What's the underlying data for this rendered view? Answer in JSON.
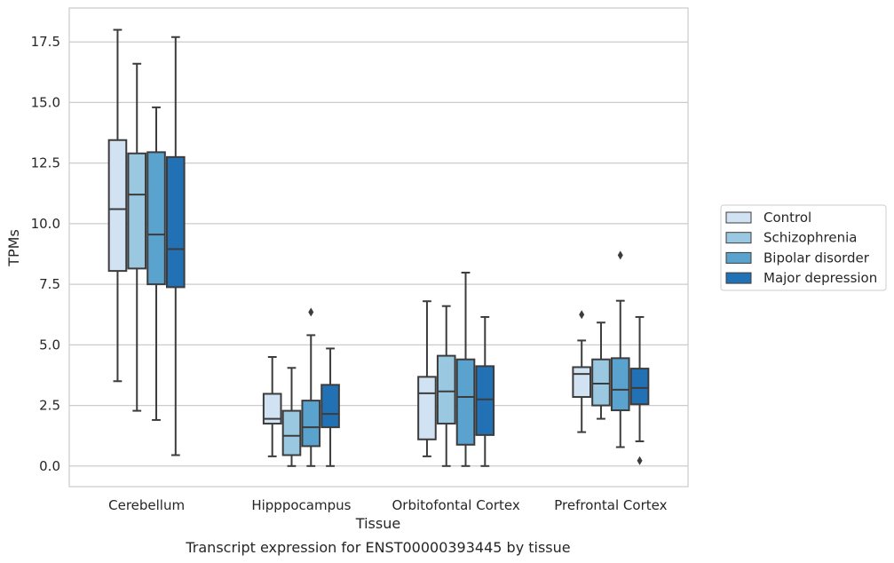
{
  "chart_data": {
    "type": "boxplot",
    "caption": "Transcript expression for ENST00000393445 by tissue",
    "xlabel": "Tissue",
    "ylabel": "TPMs",
    "ylim": [
      -0.85,
      18.9
    ],
    "yticks": [
      "0.0",
      "2.5",
      "5.0",
      "7.5",
      "10.0",
      "12.5",
      "15.0",
      "17.5"
    ],
    "grid": "horizontal",
    "legend_position": "right",
    "categories": [
      "Cerebellum",
      "Hipppocampus",
      "Orbitofontal Cortex",
      "Prefrontal Cortex"
    ],
    "series": [
      {
        "name": "Control",
        "color": "#d1e2f2",
        "boxes": [
          {
            "whislo": 3.5,
            "q1": 8.05,
            "med": 10.6,
            "q3": 13.45,
            "whishi": 18.0,
            "fliers": []
          },
          {
            "whislo": 0.4,
            "q1": 1.75,
            "med": 1.95,
            "q3": 2.98,
            "whishi": 4.5,
            "fliers": []
          },
          {
            "whislo": 0.4,
            "q1": 1.1,
            "med": 3.0,
            "q3": 3.68,
            "whishi": 6.8,
            "fliers": []
          },
          {
            "whislo": 1.4,
            "q1": 2.85,
            "med": 3.8,
            "q3": 4.08,
            "whishi": 5.18,
            "fliers": [
              6.25
            ]
          }
        ]
      },
      {
        "name": "Schizophrenia",
        "color": "#9ac8e0",
        "boxes": [
          {
            "whislo": 2.28,
            "q1": 8.15,
            "med": 11.2,
            "q3": 12.9,
            "whishi": 16.6,
            "fliers": []
          },
          {
            "whislo": 0.0,
            "q1": 0.45,
            "med": 1.25,
            "q3": 2.28,
            "whishi": 4.05,
            "fliers": []
          },
          {
            "whislo": 0.0,
            "q1": 1.75,
            "med": 3.08,
            "q3": 4.55,
            "whishi": 6.6,
            "fliers": []
          },
          {
            "whislo": 1.95,
            "q1": 2.5,
            "med": 3.4,
            "q3": 4.4,
            "whishi": 5.92,
            "fliers": []
          }
        ]
      },
      {
        "name": "Bipolar disorder",
        "color": "#5ba3cf",
        "boxes": [
          {
            "whislo": 1.9,
            "q1": 7.5,
            "med": 9.55,
            "q3": 12.95,
            "whishi": 14.8,
            "fliers": []
          },
          {
            "whislo": 0.0,
            "q1": 0.82,
            "med": 1.6,
            "q3": 2.7,
            "whishi": 5.4,
            "fliers": [
              6.35
            ]
          },
          {
            "whislo": 0.0,
            "q1": 0.88,
            "med": 2.85,
            "q3": 4.4,
            "whishi": 7.98,
            "fliers": []
          },
          {
            "whislo": 0.78,
            "q1": 2.3,
            "med": 3.15,
            "q3": 4.45,
            "whishi": 6.82,
            "fliers": [
              8.7
            ]
          }
        ]
      },
      {
        "name": "Major depression",
        "color": "#2271b5",
        "boxes": [
          {
            "whislo": 0.45,
            "q1": 7.38,
            "med": 8.95,
            "q3": 12.75,
            "whishi": 17.7,
            "fliers": []
          },
          {
            "whislo": 0.0,
            "q1": 1.6,
            "med": 2.15,
            "q3": 3.35,
            "whishi": 4.85,
            "fliers": []
          },
          {
            "whislo": 0.0,
            "q1": 1.28,
            "med": 2.75,
            "q3": 4.12,
            "whishi": 6.15,
            "fliers": []
          },
          {
            "whislo": 1.02,
            "q1": 2.55,
            "med": 3.22,
            "q3": 4.02,
            "whishi": 6.15,
            "fliers": [
              0.22
            ]
          }
        ]
      }
    ]
  }
}
